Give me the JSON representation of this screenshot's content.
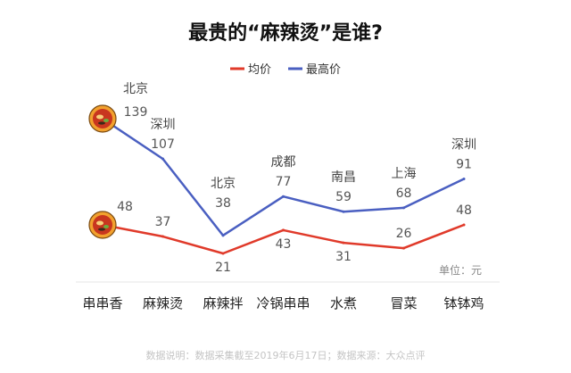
{
  "chart_data": {
    "type": "line",
    "title": "最贵的“麻辣烫”是谁?",
    "categories": [
      "串串香",
      "麻辣烫",
      "麻辣拌",
      "冷锅串串",
      "水煮",
      "冒菜",
      "钵钵鸡"
    ],
    "series": [
      {
        "name": "均价",
        "color": "#e03a2a",
        "values": [
          48,
          37,
          21,
          43,
          31,
          26,
          48
        ]
      },
      {
        "name": "最高价",
        "color": "#4a5fc1",
        "values": [
          139,
          107,
          38,
          77,
          59,
          68,
          91
        ]
      }
    ],
    "max_cities": [
      "北京",
      "深圳",
      "北京",
      "成都",
      "南昌",
      "上海",
      "深圳"
    ],
    "unit": "单位：元",
    "legend_position": "top-center",
    "ylim": [
      0,
      150
    ],
    "grid": false
  },
  "footnote": "数据说明：数据采集截至2019年6月17日；数据来源：大众点评",
  "icons": [
    "food-bowl-icon",
    "food-bowl-icon"
  ]
}
